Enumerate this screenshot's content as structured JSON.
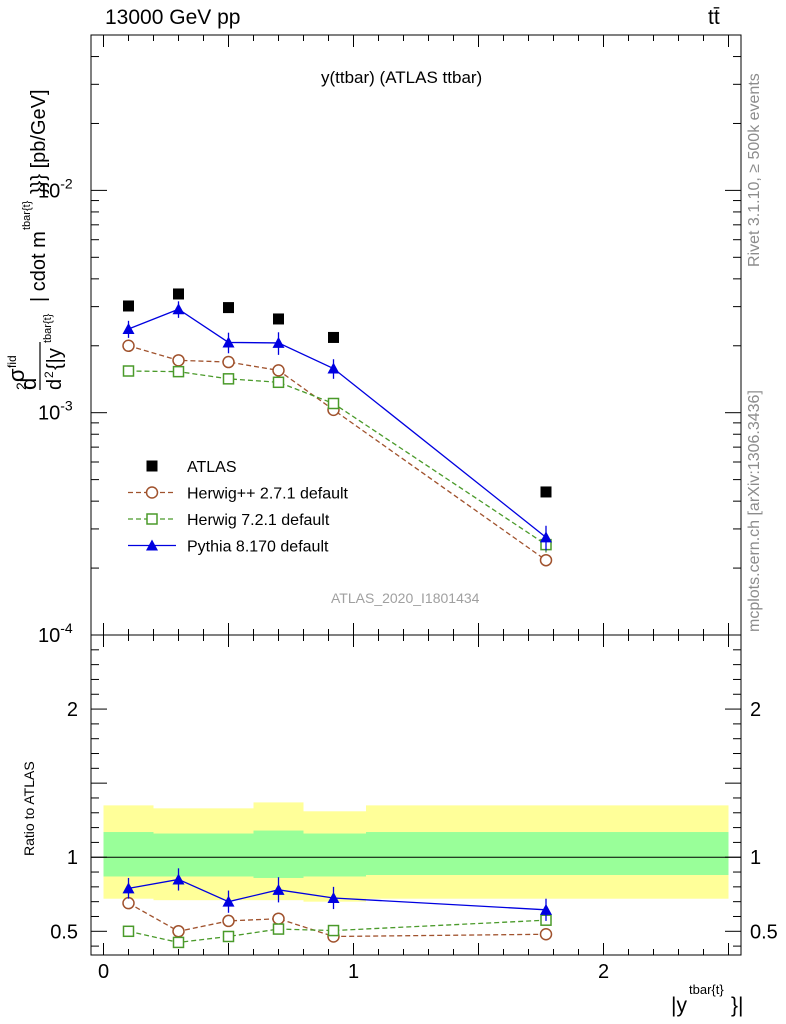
{
  "header": {
    "energy_label": "13000 GeV pp",
    "process_label": "tt̄"
  },
  "side_labels": {
    "rivet": "Rivet 3.1.10, ≥ 500k events",
    "mcplots": "mcplots.cern.ch [arXiv:1306.3436]"
  },
  "chart_data": [
    {
      "type": "scatter",
      "panel": "main",
      "title": "y(ttbar) (ATLAS ttbar)",
      "ylabel": "d^2σ^fid / d^2 {|y^tbar{t}|} cdot m^tbar{t}}}} [pb/GeV]",
      "watermark": "ATLAS_2020_I1801434",
      "yscale": "log",
      "ylim": [
        0.0001,
        0.05
      ],
      "xlim": [
        -0.05,
        2.55
      ],
      "ytick_labels": [
        "10^-4",
        "10^-3",
        "10^-2"
      ],
      "legend_position": "lower-left",
      "x": [
        0.1,
        0.3,
        0.5,
        0.7,
        0.92,
        1.77
      ],
      "series": [
        {
          "name": "ATLAS",
          "marker": "square-filled",
          "color": "#000000",
          "line": false,
          "values": [
            0.00302,
            0.00342,
            0.00297,
            0.00264,
            0.00218,
            0.00044
          ],
          "errors": [
            0.0,
            0.0,
            0.0,
            0.0,
            0.0,
            0.0
          ]
        },
        {
          "name": "Herwig++ 2.7.1 default",
          "marker": "circle-open",
          "color": "#a0522d",
          "line": "dashed",
          "values": [
            0.002,
            0.00172,
            0.00169,
            0.00155,
            0.00103,
            0.000217
          ],
          "errors": [
            8e-05,
            7e-05,
            7e-05,
            6e-05,
            5e-05,
            1e-05
          ]
        },
        {
          "name": "Herwig 7.2.1 default",
          "marker": "square-open",
          "color": "#4a9a2a",
          "line": "dashed",
          "values": [
            0.00154,
            0.00153,
            0.00142,
            0.00137,
            0.0011,
            0.000255
          ],
          "errors": [
            7e-05,
            7e-05,
            7e-05,
            6e-05,
            5e-05,
            2e-05
          ]
        },
        {
          "name": "Pythia 8.170 default",
          "marker": "triangle-filled",
          "color": "#0000e0",
          "line": "solid",
          "values": [
            0.00238,
            0.00292,
            0.00207,
            0.00206,
            0.00158,
            0.000275
          ],
          "errors": [
            0.00021,
            0.00025,
            0.00022,
            0.00024,
            0.00016,
            3.5e-05
          ]
        }
      ]
    },
    {
      "type": "scatter",
      "panel": "ratio",
      "ylabel": "Ratio to ATLAS",
      "xlabel": "|y^tbar{t}|",
      "ylim": [
        0.34,
        2.5
      ],
      "xlim": [
        -0.05,
        2.55
      ],
      "ytick_labels": [
        "0.5",
        "1",
        "2"
      ],
      "xtick_labels": [
        "0",
        "1",
        "2"
      ],
      "bands": [
        {
          "name": "outer",
          "color": "#ffff99",
          "bins": [
            [
              0.0,
              0.2,
              0.72,
              1.35
            ],
            [
              0.2,
              0.4,
              0.71,
              1.33
            ],
            [
              0.4,
              0.6,
              0.71,
              1.33
            ],
            [
              0.6,
              0.8,
              0.71,
              1.37
            ],
            [
              0.8,
              1.05,
              0.7,
              1.31
            ],
            [
              1.05,
              2.5,
              0.72,
              1.35
            ]
          ]
        },
        {
          "name": "inner",
          "color": "#99ff99",
          "bins": [
            [
              0.0,
              0.2,
              0.87,
              1.17
            ],
            [
              0.2,
              0.4,
              0.87,
              1.16
            ],
            [
              0.4,
              0.6,
              0.87,
              1.16
            ],
            [
              0.6,
              0.8,
              0.86,
              1.18
            ],
            [
              0.8,
              1.05,
              0.87,
              1.16
            ],
            [
              1.05,
              2.5,
              0.88,
              1.17
            ]
          ]
        }
      ],
      "reference_line": 1.0,
      "x": [
        0.1,
        0.3,
        0.5,
        0.7,
        0.92,
        1.77
      ],
      "series": [
        {
          "name": "Herwig++ 2.7.1 default",
          "marker": "circle-open",
          "color": "#a0522d",
          "line": "dashed",
          "values": [
            0.69,
            0.5,
            0.57,
            0.585,
            0.465,
            0.48
          ],
          "errors": [
            0.03,
            0.03,
            0.03,
            0.03,
            0.03,
            0.03
          ]
        },
        {
          "name": "Herwig 7.2.1 default",
          "marker": "square-open",
          "color": "#4a9a2a",
          "line": "dashed",
          "values": [
            0.5,
            0.425,
            0.465,
            0.515,
            0.505,
            0.575
          ],
          "errors": [
            0.025,
            0.025,
            0.025,
            0.025,
            0.025,
            0.035
          ]
        },
        {
          "name": "Pythia 8.170 default",
          "marker": "triangle-filled",
          "color": "#0000e0",
          "line": "solid",
          "values": [
            0.79,
            0.85,
            0.7,
            0.78,
            0.725,
            0.645
          ],
          "errors": [
            0.07,
            0.075,
            0.075,
            0.085,
            0.075,
            0.075
          ]
        }
      ]
    }
  ]
}
